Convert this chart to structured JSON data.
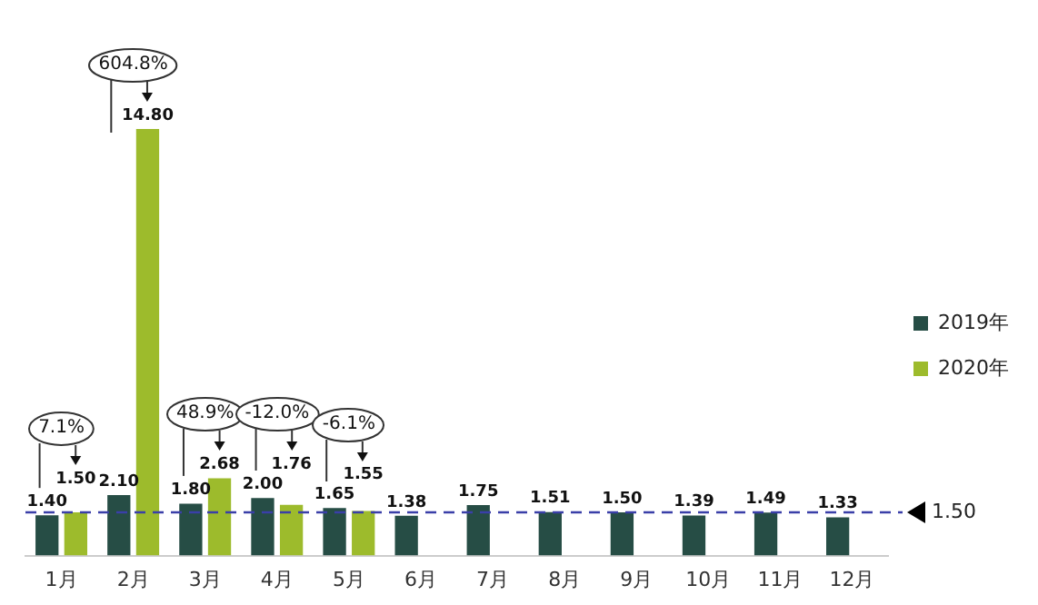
{
  "chart_data": {
    "type": "bar",
    "categories": [
      "1月",
      "2月",
      "3月",
      "4月",
      "5月",
      "6月",
      "7月",
      "8月",
      "9月",
      "10月",
      "11月",
      "12月"
    ],
    "series": [
      {
        "name": "2019年",
        "color": "#264d45",
        "values": [
          1.4,
          2.1,
          1.8,
          2.0,
          1.65,
          1.38,
          1.75,
          1.51,
          1.5,
          1.39,
          1.49,
          1.33
        ],
        "value_labels": [
          "1.40",
          "2.10",
          "1.80",
          "2.00",
          "1.65",
          "1.38",
          "1.75",
          "1.51",
          "1.50",
          "1.39",
          "1.49",
          "1.33"
        ]
      },
      {
        "name": "2020年",
        "color": "#9dbb2c",
        "values": [
          1.5,
          14.8,
          2.68,
          1.76,
          1.55,
          null,
          null,
          null,
          null,
          null,
          null,
          null
        ],
        "value_labels": [
          "1.50",
          "14.80",
          "2.68",
          "1.76",
          "1.55",
          null,
          null,
          null,
          null,
          null,
          null,
          null
        ]
      }
    ],
    "ref_lines": [
      {
        "axis": "y",
        "value": 1.5,
        "label": "1.50",
        "color": "#3a3fa8",
        "line_style": "dashed"
      }
    ],
    "annotations": [
      "7.1%",
      "604.8%",
      "48.9%",
      "-12.0%",
      "-6.1%"
    ],
    "legend": "right",
    "grid": false,
    "tick_labels": "x"
  }
}
